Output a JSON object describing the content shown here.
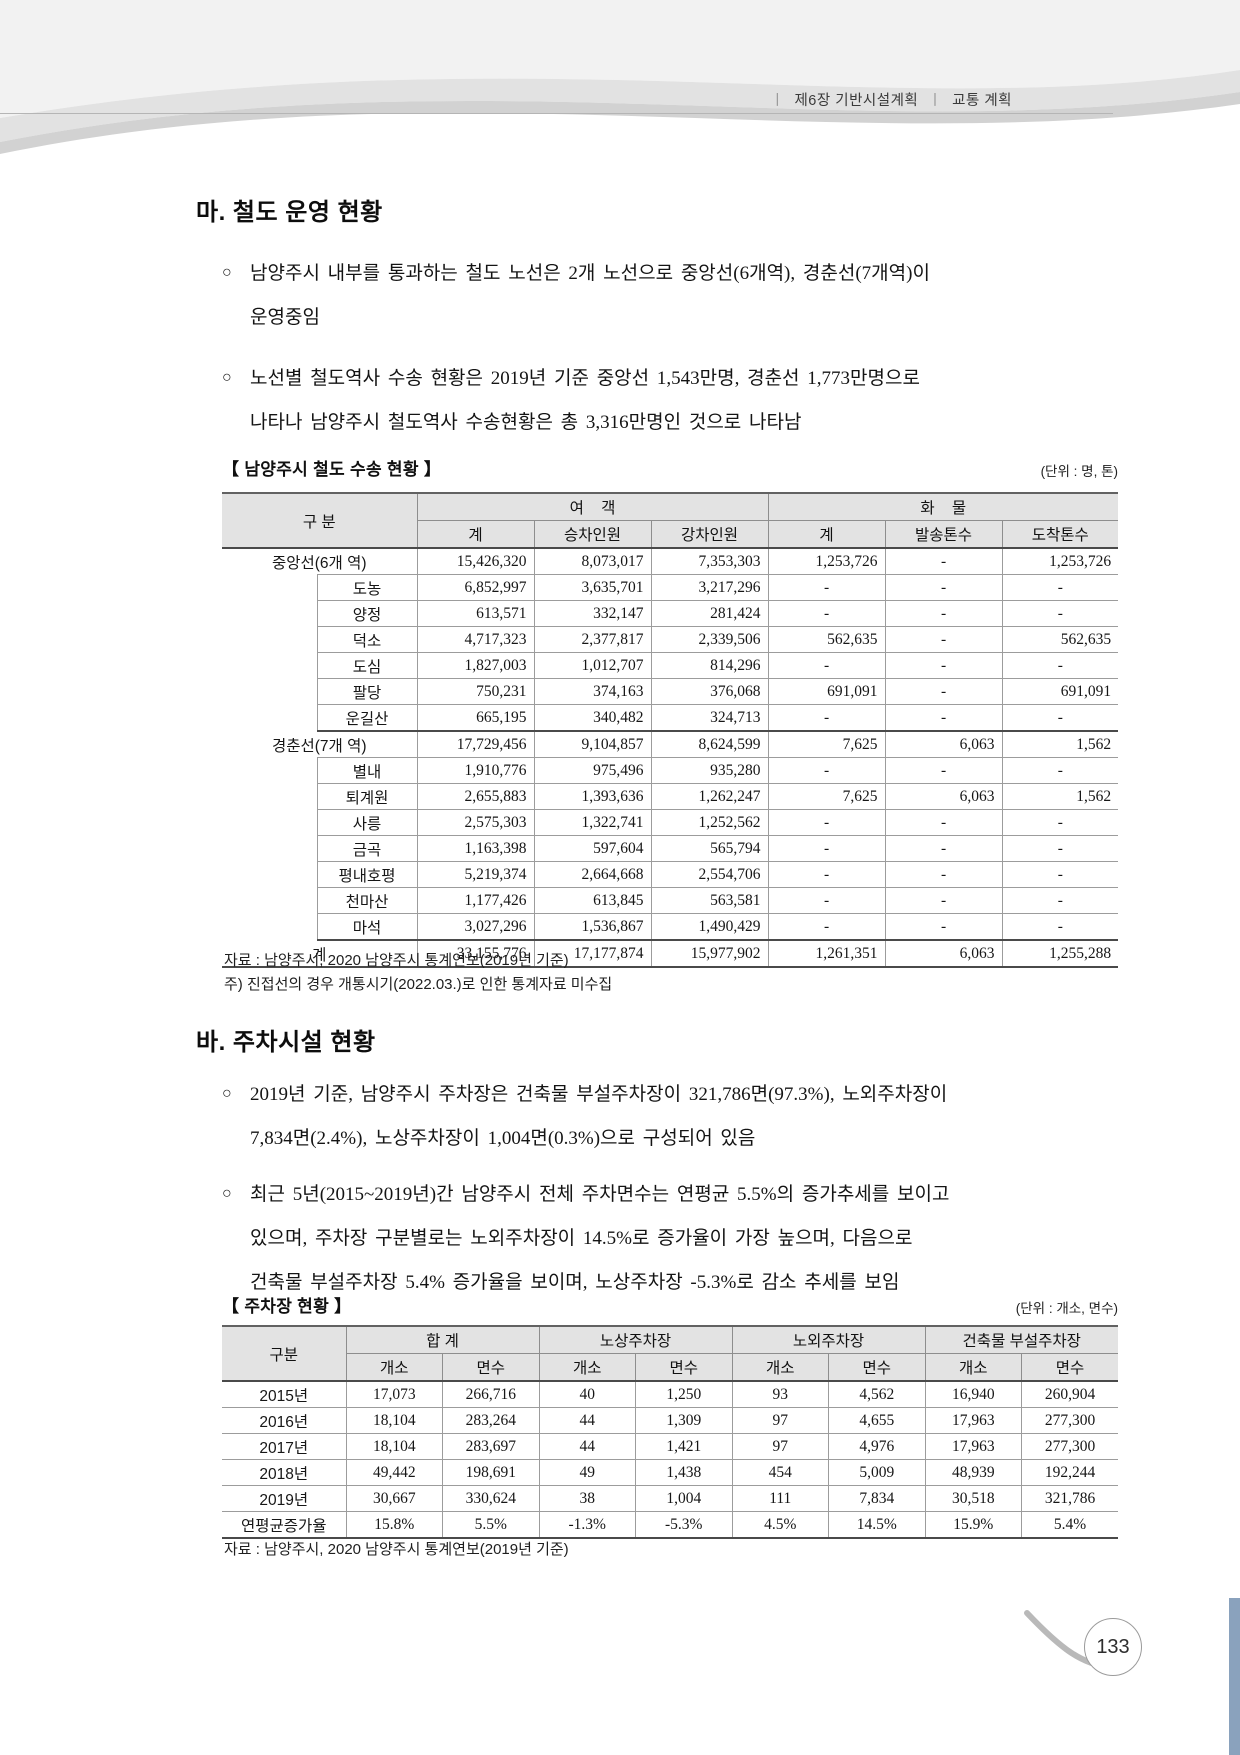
{
  "bullet_marker": "○",
  "header": {
    "sep": "ㅣ",
    "part1": "제6장 기반시설계획",
    "part2": "교통 계획"
  },
  "sections": {
    "ma": {
      "title": "마. 철도 운영 현황",
      "bullets": [
        [
          "남양주시 내부를 통과하는 철도 노선은 2개 노선으로 중앙선(6개역), 경춘선(7개역)이",
          "운영중임"
        ],
        [
          "노선별 철도역사 수송 현황은 2019년 기준 중앙선 1,543만명, 경춘선 1,773만명으로",
          "나타나 남양주시 철도역사 수송현황은 총 3,316만명인 것으로 나타남"
        ]
      ]
    },
    "ba": {
      "title": "바. 주차시설 현황",
      "bullets": [
        [
          "2019년 기준, 남양주시 주차장은 건축물 부설주차장이 321,786면(97.3%), 노외주차장이",
          "7,834면(2.4%), 노상주차장이 1,004면(0.3%)으로 구성되어 있음"
        ],
        [
          "최근 5년(2015~2019년)간 남양주시 전체 주차면수는 연평균 5.5%의 증가추세를 보이고",
          "있으며, 주차장 구분별로는 노외주차장이 14.5%로 증가율이 가장 높으며, 다음으로",
          "건축물 부설주차장 5.4% 증가율을 보이며, 노상주차장 -5.3%로 감소 추세를 보임"
        ]
      ]
    }
  },
  "rail_table": {
    "title": "【 남양주시 철도 수송 현황 】",
    "unit": "(단위 : 명, 톤)",
    "header": {
      "gubun": "구 분",
      "passenger": "여    객",
      "cargo": "화    물",
      "sub": [
        "계",
        "승차인원",
        "강차인원",
        "계",
        "발송톤수",
        "도착톤수"
      ]
    },
    "rows": [
      {
        "type": "group",
        "label": "중앙선(6개 역)",
        "values": [
          "15,426,320",
          "8,073,017",
          "7,353,303",
          "1,253,726",
          "-",
          "1,253,726"
        ]
      },
      {
        "type": "station",
        "label": "도농",
        "values": [
          "6,852,997",
          "3,635,701",
          "3,217,296",
          "-",
          "-",
          "-"
        ]
      },
      {
        "type": "station",
        "label": "양정",
        "values": [
          "613,571",
          "332,147",
          "281,424",
          "-",
          "-",
          "-"
        ]
      },
      {
        "type": "station",
        "label": "덕소",
        "values": [
          "4,717,323",
          "2,377,817",
          "2,339,506",
          "562,635",
          "-",
          "562,635"
        ]
      },
      {
        "type": "station",
        "label": "도심",
        "values": [
          "1,827,003",
          "1,012,707",
          "814,296",
          "-",
          "-",
          "-"
        ]
      },
      {
        "type": "station",
        "label": "팔당",
        "values": [
          "750,231",
          "374,163",
          "376,068",
          "691,091",
          "-",
          "691,091"
        ]
      },
      {
        "type": "station",
        "label": "운길산",
        "values": [
          "665,195",
          "340,482",
          "324,713",
          "-",
          "-",
          "-"
        ]
      },
      {
        "type": "group",
        "label": "경춘선(7개 역)",
        "values": [
          "17,729,456",
          "9,104,857",
          "8,624,599",
          "7,625",
          "6,063",
          "1,562"
        ]
      },
      {
        "type": "station",
        "label": "별내",
        "values": [
          "1,910,776",
          "975,496",
          "935,280",
          "-",
          "-",
          "-"
        ]
      },
      {
        "type": "station",
        "label": "퇴계원",
        "values": [
          "2,655,883",
          "1,393,636",
          "1,262,247",
          "7,625",
          "6,063",
          "1,562"
        ]
      },
      {
        "type": "station",
        "label": "사릉",
        "values": [
          "2,575,303",
          "1,322,741",
          "1,252,562",
          "-",
          "-",
          "-"
        ]
      },
      {
        "type": "station",
        "label": "금곡",
        "values": [
          "1,163,398",
          "597,604",
          "565,794",
          "-",
          "-",
          "-"
        ]
      },
      {
        "type": "station",
        "label": "평내호평",
        "values": [
          "5,219,374",
          "2,664,668",
          "2,554,706",
          "-",
          "-",
          "-"
        ]
      },
      {
        "type": "station",
        "label": "천마산",
        "values": [
          "1,177,426",
          "613,845",
          "563,581",
          "-",
          "-",
          "-"
        ]
      },
      {
        "type": "station",
        "label": "마석",
        "values": [
          "3,027,296",
          "1,536,867",
          "1,490,429",
          "-",
          "-",
          "-"
        ]
      },
      {
        "type": "total",
        "label": "계",
        "values": [
          "33,155,776",
          "17,177,874",
          "15,977,902",
          "1,261,351",
          "6,063",
          "1,255,288"
        ]
      }
    ],
    "notes": [
      "자료 : 남양주시, 2020 남양주시 통계연보(2019년 기준)",
      "주) 진접선의 경우 개통시기(2022.03.)로 인한 통계자료 미수집"
    ]
  },
  "parking_table": {
    "title": "【 주차장 현황 】",
    "unit": "(단위 : 개소, 면수)",
    "header": {
      "gubun": "구분",
      "groups": [
        "합 계",
        "노상주차장",
        "노외주차장",
        "건축물 부설주차장"
      ],
      "sub": [
        "개소",
        "면수",
        "개소",
        "면수",
        "개소",
        "면수",
        "개소",
        "면수"
      ]
    },
    "rows": [
      {
        "label": "2015년",
        "values": [
          "17,073",
          "266,716",
          "40",
          "1,250",
          "93",
          "4,562",
          "16,940",
          "260,904"
        ]
      },
      {
        "label": "2016년",
        "values": [
          "18,104",
          "283,264",
          "44",
          "1,309",
          "97",
          "4,655",
          "17,963",
          "277,300"
        ]
      },
      {
        "label": "2017년",
        "values": [
          "18,104",
          "283,697",
          "44",
          "1,421",
          "97",
          "4,976",
          "17,963",
          "277,300"
        ]
      },
      {
        "label": "2018년",
        "values": [
          "49,442",
          "198,691",
          "49",
          "1,438",
          "454",
          "5,009",
          "48,939",
          "192,244"
        ]
      },
      {
        "label": "2019년",
        "values": [
          "30,667",
          "330,624",
          "38",
          "1,004",
          "111",
          "7,834",
          "30,518",
          "321,786"
        ]
      },
      {
        "label": "연평균증가율",
        "values": [
          "15.8%",
          "5.5%",
          "-1.3%",
          "-5.3%",
          "4.5%",
          "14.5%",
          "15.9%",
          "5.4%"
        ]
      }
    ],
    "note": "자료 : 남양주시, 2020 남양주시 통계연보(2019년 기준)"
  },
  "footer": {
    "page_number": "133"
  }
}
